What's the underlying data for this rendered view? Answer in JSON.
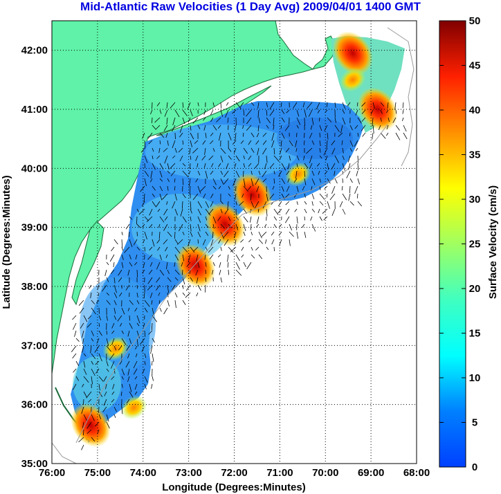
{
  "title": "Mid-Atlantic Raw Velocities (1 Day Avg) 2009/04/01 1400 GMT",
  "map": {
    "xlabel": "Longitude (Degrees:Minutes)",
    "ylabel": "Latitude (Degrees:Minutes)",
    "x_ticks": [
      "76:00",
      "75:00",
      "74:00",
      "73:00",
      "72:00",
      "71:00",
      "70:00",
      "69:00",
      "68:00"
    ],
    "y_ticks": [
      "35:00",
      "36:00",
      "37:00",
      "38:00",
      "39:00",
      "40:00",
      "41:00",
      "42:00"
    ],
    "lon_range": [
      -76,
      -68
    ],
    "lat_range": [
      35,
      42.5
    ],
    "land_color": "#5ff2a8",
    "grid": "dotted"
  },
  "colorbar": {
    "label": "Surface Velocity (cm/s)",
    "ticks": [
      "0",
      "5",
      "10",
      "15",
      "20",
      "25",
      "30",
      "35",
      "40",
      "45",
      "50"
    ],
    "range": [
      0,
      50
    ],
    "colormap": "jet"
  },
  "chart_data": {
    "type": "heatmap",
    "title": "Mid-Atlantic Raw Velocities (1 Day Avg) 2009/04/01 1400 GMT",
    "xlabel": "Longitude (Degrees:Minutes)",
    "ylabel": "Latitude (Degrees:Minutes)",
    "xlim": [
      -76,
      -68
    ],
    "ylim": [
      35,
      42.5
    ],
    "colorbar_label": "Surface Velocity (cm/s)",
    "colorbar_range": [
      0,
      50
    ],
    "hotspots": [
      {
        "lon": -68.85,
        "lat": 41.0,
        "value": 48
      },
      {
        "lon": -69.4,
        "lat": 41.95,
        "value": 45
      },
      {
        "lon": -71.6,
        "lat": 39.55,
        "value": 44
      },
      {
        "lon": -72.2,
        "lat": 39.05,
        "value": 38
      },
      {
        "lon": -72.85,
        "lat": 38.35,
        "value": 42
      },
      {
        "lon": -74.6,
        "lat": 36.95,
        "value": 35
      },
      {
        "lon": -75.15,
        "lat": 35.65,
        "value": 45
      },
      {
        "lon": -70.6,
        "lat": 39.9,
        "value": 28
      },
      {
        "lon": -69.4,
        "lat": 41.5,
        "value": 30
      },
      {
        "lon": -74.2,
        "lat": 35.95,
        "value": 32
      }
    ]
  }
}
